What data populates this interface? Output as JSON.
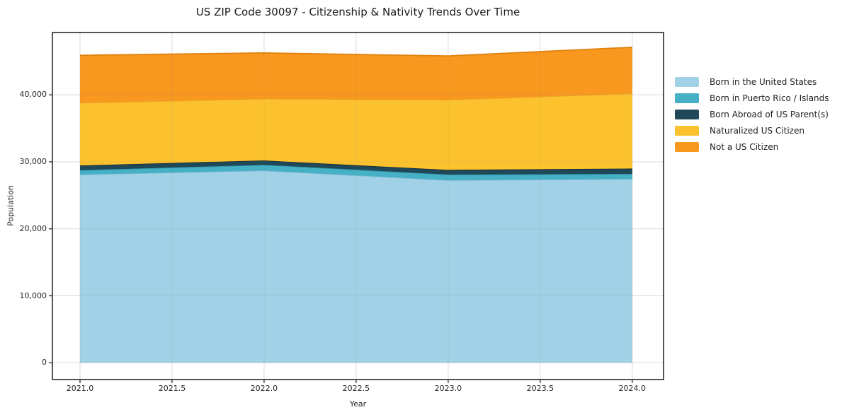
{
  "chart_data": {
    "type": "area",
    "stacked": true,
    "title": "US ZIP Code 30097 - Citizenship & Nativity Trends Over Time",
    "xlabel": "Year",
    "ylabel": "Population",
    "x": [
      2021,
      2022,
      2023,
      2024
    ],
    "series": [
      {
        "name": "Born in the United States",
        "color": "#a0d1e7",
        "edge": "#7fb9d6",
        "values": [
          28100,
          28700,
          27250,
          27450
        ]
      },
      {
        "name": "Born in Puerto Rico / Islands",
        "color": "#46b0c4",
        "edge": "#2f93a7",
        "values": [
          650,
          850,
          850,
          750
        ]
      },
      {
        "name": "Born Abroad of US Parent(s)",
        "color": "#1f4858",
        "edge": "#132f3c",
        "values": [
          700,
          650,
          700,
          800
        ]
      },
      {
        "name": "Naturalized US Citizen",
        "color": "#fcc22e",
        "edge": "#eca928",
        "values": [
          9350,
          9200,
          10450,
          11200
        ]
      },
      {
        "name": "Not a US Citizen",
        "color": "#f8981f",
        "edge": "#e1810f",
        "values": [
          7100,
          6850,
          6550,
          6900
        ]
      }
    ],
    "x_ticks": [
      2021.0,
      2021.5,
      2022.0,
      2022.5,
      2023.0,
      2023.5,
      2024.0
    ],
    "x_tick_labels": [
      "2021.0",
      "2021.5",
      "2022.0",
      "2022.5",
      "2023.0",
      "2023.5",
      "2024.0"
    ],
    "y_ticks": [
      0,
      10000,
      20000,
      30000,
      40000
    ],
    "y_tick_labels": [
      "0",
      "10,000",
      "20,000",
      "30,000",
      "40,000"
    ],
    "xlim": [
      2020.85,
      2024.17
    ],
    "ylim": [
      -2500,
      49300
    ],
    "grid": true,
    "legend_position": "right-outside",
    "colors": {
      "grid_under": "#e9e9e9",
      "grid_over": "rgba(130,130,130,0.13)",
      "spine": "#2b2b2b",
      "tick": "#2b2b2b",
      "background": "#ffffff"
    }
  }
}
